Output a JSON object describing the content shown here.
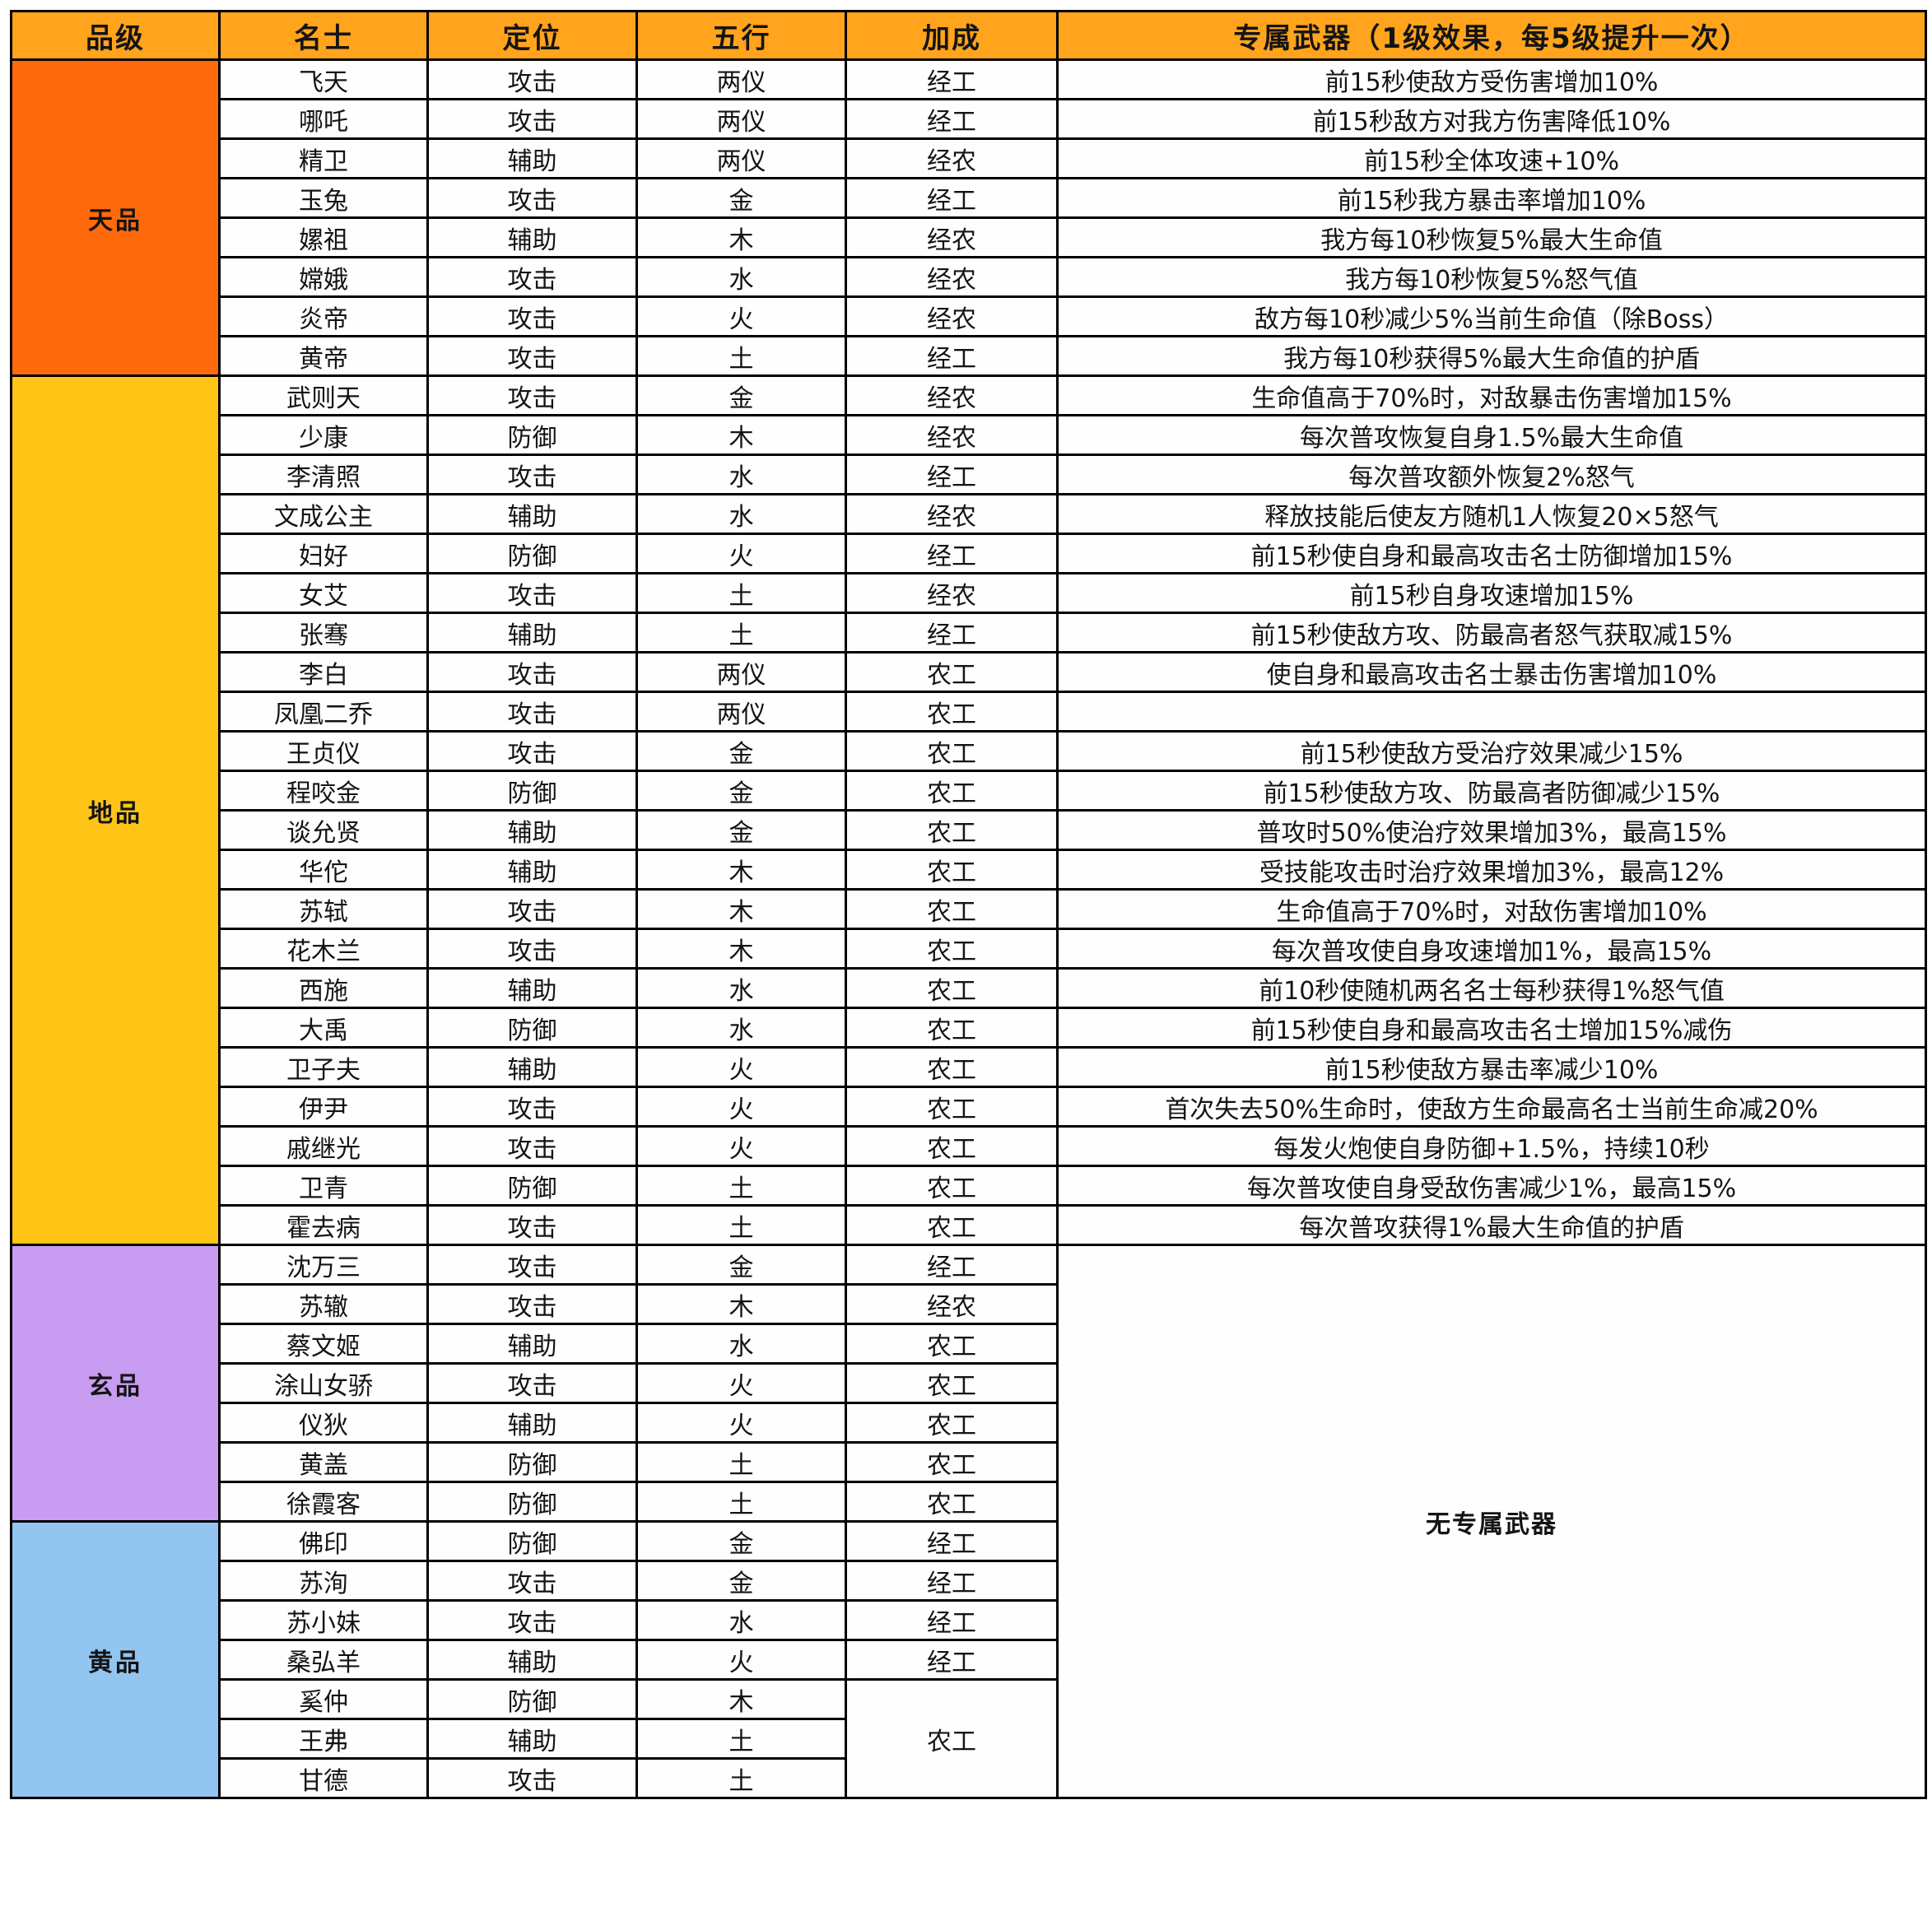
{
  "header": {
    "tier": "品级",
    "name": "名士",
    "role": "定位",
    "element": "五行",
    "bonus": "加成",
    "weapon": "专属武器（1级效果，每5级提升一次）"
  },
  "no_weapon_text": "无专属武器",
  "colors": {
    "header_bg": "#FFA41C",
    "border": "#000000",
    "row_default": "#FEFEFE",
    "row_highlight": "#F7C49C",
    "tier_tian": "#FF6A0D",
    "tier_di": "#FFC516",
    "tier_xuan": "#C89CF1",
    "tier_huang": "#92C5F0"
  },
  "sections": [
    {
      "tier": "天品",
      "color_key": "tier_tian",
      "rows": [
        {
          "name": "飞天",
          "role": "攻击",
          "element": "两仪",
          "bonus": "经工",
          "weapon": "前15秒使敌方受伤害增加10%",
          "highlight": false
        },
        {
          "name": "哪吒",
          "role": "攻击",
          "element": "两仪",
          "bonus": "经工",
          "weapon": "前15秒敌方对我方伤害降低10%",
          "highlight": false
        },
        {
          "name": "精卫",
          "role": "辅助",
          "element": "两仪",
          "bonus": "经农",
          "weapon": "前15秒全体攻速+10%",
          "highlight": false
        },
        {
          "name": "玉兔",
          "role": "攻击",
          "element": "金",
          "bonus": "经工",
          "weapon": "前15秒我方暴击率增加10%",
          "highlight": false
        },
        {
          "name": "嫘祖",
          "role": "辅助",
          "element": "木",
          "bonus": "经农",
          "weapon": "我方每10秒恢复5%最大生命值",
          "highlight": false
        },
        {
          "name": "嫦娥",
          "role": "攻击",
          "element": "水",
          "bonus": "经农",
          "weapon": "我方每10秒恢复5%怒气值",
          "highlight": false
        },
        {
          "name": "炎帝",
          "role": "攻击",
          "element": "火",
          "bonus": "经农",
          "weapon": "敌方每10秒减少5%当前生命值（除Boss）",
          "highlight": false
        },
        {
          "name": "黄帝",
          "role": "攻击",
          "element": "土",
          "bonus": "经工",
          "weapon": "我方每10秒获得5%最大生命值的护盾",
          "highlight": false
        }
      ]
    },
    {
      "tier": "地品",
      "color_key": "tier_di",
      "rows": [
        {
          "name": "武则天",
          "role": "攻击",
          "element": "金",
          "bonus": "经农",
          "weapon": "生命值高于70%时，对敌暴击伤害增加15%",
          "highlight": true
        },
        {
          "name": "少康",
          "role": "防御",
          "element": "木",
          "bonus": "经农",
          "weapon": "每次普攻恢复自身1.5%最大生命值",
          "highlight": true
        },
        {
          "name": "李清照",
          "role": "攻击",
          "element": "水",
          "bonus": "经工",
          "weapon": "每次普攻额外恢复2%怒气",
          "highlight": true
        },
        {
          "name": "文成公主",
          "role": "辅助",
          "element": "水",
          "bonus": "经农",
          "weapon": "释放技能后使友方随机1人恢复20×5怒气",
          "highlight": true
        },
        {
          "name": "妇好",
          "role": "防御",
          "element": "火",
          "bonus": "经工",
          "weapon": "前15秒使自身和最高攻击名士防御增加15%",
          "highlight": true
        },
        {
          "name": "女艾",
          "role": "攻击",
          "element": "土",
          "bonus": "经农",
          "weapon": "前15秒自身攻速增加15%",
          "highlight": true
        },
        {
          "name": "张骞",
          "role": "辅助",
          "element": "土",
          "bonus": "经工",
          "weapon": "前15秒使敌方攻、防最高者怒气获取减15%",
          "highlight": true
        },
        {
          "name": "李白",
          "role": "攻击",
          "element": "两仪",
          "bonus": "农工",
          "weapon": "使自身和最高攻击名士暴击伤害增加10%",
          "highlight": false
        },
        {
          "name": "凤凰二乔",
          "role": "攻击",
          "element": "两仪",
          "bonus": "农工",
          "weapon": "",
          "highlight": false
        },
        {
          "name": "王贞仪",
          "role": "攻击",
          "element": "金",
          "bonus": "农工",
          "weapon": "前15秒使敌方受治疗效果减少15%",
          "highlight": false
        },
        {
          "name": "程咬金",
          "role": "防御",
          "element": "金",
          "bonus": "农工",
          "weapon": "前15秒使敌方攻、防最高者防御减少15%",
          "highlight": false
        },
        {
          "name": "谈允贤",
          "role": "辅助",
          "element": "金",
          "bonus": "农工",
          "weapon": "普攻时50%使治疗效果增加3%，最高15%",
          "highlight": false
        },
        {
          "name": "华佗",
          "role": "辅助",
          "element": "木",
          "bonus": "农工",
          "weapon": "受技能攻击时治疗效果增加3%，最高12%",
          "highlight": false
        },
        {
          "name": "苏轼",
          "role": "攻击",
          "element": "木",
          "bonus": "农工",
          "weapon": "生命值高于70%时，对敌伤害增加10%",
          "highlight": false
        },
        {
          "name": "花木兰",
          "role": "攻击",
          "element": "木",
          "bonus": "农工",
          "weapon": "每次普攻使自身攻速增加1%，最高15%",
          "highlight": false
        },
        {
          "name": "西施",
          "role": "辅助",
          "element": "水",
          "bonus": "农工",
          "weapon": "前10秒使随机两名名士每秒获得1%怒气值",
          "highlight": false
        },
        {
          "name": "大禹",
          "role": "防御",
          "element": "水",
          "bonus": "农工",
          "weapon": "前15秒使自身和最高攻击名士增加15%减伤",
          "highlight": false
        },
        {
          "name": "卫子夫",
          "role": "辅助",
          "element": "火",
          "bonus": "农工",
          "weapon": "前15秒使敌方暴击率减少10%",
          "highlight": false
        },
        {
          "name": "伊尹",
          "role": "攻击",
          "element": "火",
          "bonus": "农工",
          "weapon": "首次失去50%生命时，使敌方生命最高名士当前生命减20%",
          "highlight": false
        },
        {
          "name": "戚继光",
          "role": "攻击",
          "element": "火",
          "bonus": "农工",
          "weapon": "每发火炮使自身防御+1.5%，持续10秒",
          "highlight": false
        },
        {
          "name": "卫青",
          "role": "防御",
          "element": "土",
          "bonus": "农工",
          "weapon": "每次普攻使自身受敌伤害减少1%，最高15%",
          "highlight": false
        },
        {
          "name": "霍去病",
          "role": "攻击",
          "element": "土",
          "bonus": "农工",
          "weapon": "每次普攻获得1%最大生命值的护盾",
          "highlight": false
        }
      ]
    },
    {
      "tier": "玄品",
      "color_key": "tier_xuan",
      "rows": [
        {
          "name": "沈万三",
          "role": "攻击",
          "element": "金",
          "bonus": "经工",
          "weapon": "无专属武器",
          "weapon_rowspan": 14,
          "weapon_merged": true,
          "highlight": true
        },
        {
          "name": "苏辙",
          "role": "攻击",
          "element": "木",
          "bonus": "经农",
          "weapon": null,
          "highlight": true
        },
        {
          "name": "蔡文姬",
          "role": "辅助",
          "element": "水",
          "bonus": "农工",
          "weapon": null,
          "highlight": false
        },
        {
          "name": "涂山女骄",
          "role": "攻击",
          "element": "火",
          "bonus": "农工",
          "weapon": null,
          "highlight": false
        },
        {
          "name": "仪狄",
          "role": "辅助",
          "element": "火",
          "bonus": "农工",
          "weapon": null,
          "highlight": false
        },
        {
          "name": "黄盖",
          "role": "防御",
          "element": "土",
          "bonus": "农工",
          "weapon": null,
          "highlight": false
        },
        {
          "name": "徐霞客",
          "role": "防御",
          "element": "土",
          "bonus": "农工",
          "weapon": null,
          "highlight": false
        }
      ]
    },
    {
      "tier": "黄品",
      "color_key": "tier_huang",
      "rows": [
        {
          "name": "佛印",
          "role": "防御",
          "element": "金",
          "bonus": "经工",
          "weapon": null,
          "highlight": true
        },
        {
          "name": "苏洵",
          "role": "攻击",
          "element": "金",
          "bonus": "经工",
          "weapon": null,
          "highlight": true
        },
        {
          "name": "苏小妹",
          "role": "攻击",
          "element": "水",
          "bonus": "经工",
          "weapon": null,
          "highlight": true
        },
        {
          "name": "桑弘羊",
          "role": "辅助",
          "element": "火",
          "bonus": "经工",
          "weapon": null,
          "highlight": true
        },
        {
          "name": "奚仲",
          "role": "防御",
          "element": "木",
          "bonus": "农工",
          "bonus_rowspan": 3,
          "weapon": null,
          "highlight": false
        },
        {
          "name": "王弗",
          "role": "辅助",
          "element": "土",
          "bonus": null,
          "weapon": null,
          "highlight": false
        },
        {
          "name": "甘德",
          "role": "攻击",
          "element": "土",
          "bonus": null,
          "weapon": null,
          "highlight": false
        }
      ]
    }
  ]
}
